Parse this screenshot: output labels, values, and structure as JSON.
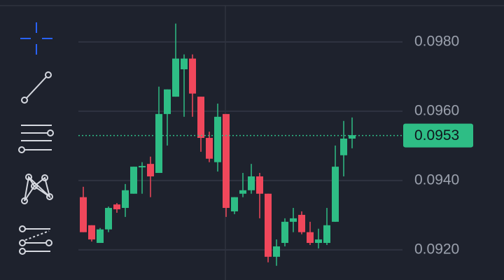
{
  "chart_data": {
    "type": "candlestick",
    "ylim": [
      0.09113,
      0.09921
    ],
    "yticks": [
      {
        "value": 0.098,
        "label": "0.0980"
      },
      {
        "value": 0.096,
        "label": "0.0960"
      },
      {
        "value": 0.094,
        "label": "0.0940"
      },
      {
        "value": 0.092,
        "label": "0.0920"
      }
    ],
    "grid": true,
    "up_color": "#2ebd85",
    "down_color": "#f0475b",
    "current_price": {
      "value": 0.0953,
      "label": "0.0953"
    },
    "open": [
      0.09352,
      0.09271,
      0.0922,
      0.09259,
      0.09331,
      0.09321,
      0.09362,
      0.09438,
      0.09448,
      0.09422,
      0.09592,
      0.09642,
      0.09721,
      0.09752,
      0.09642,
      0.09523,
      0.09453,
      0.09592,
      0.09311,
      0.09362,
      0.09372,
      0.09412,
      0.09362,
      0.0918,
      0.0922,
      0.09281,
      0.09301,
      0.09251,
      0.0922,
      0.0922,
      0.09281,
      0.09473,
      0.09521
    ],
    "high": [
      0.09382,
      0.09271,
      0.09263,
      0.09325,
      0.09335,
      0.0939,
      0.0944,
      0.09453,
      0.09469,
      0.09671,
      0.09663,
      0.09853,
      0.09764,
      0.09764,
      0.09642,
      0.09541,
      0.09622,
      0.09592,
      0.09352,
      0.09422,
      0.09448,
      0.09422,
      0.09362,
      0.0923,
      0.09291,
      0.09321,
      0.09311,
      0.09281,
      0.09261,
      0.09321,
      0.09501,
      0.09572,
      0.09582
    ],
    "low": [
      0.09251,
      0.09224,
      0.0922,
      0.09251,
      0.09307,
      0.09295,
      0.09362,
      0.09362,
      0.09352,
      0.09422,
      0.09501,
      0.09642,
      0.09584,
      0.09584,
      0.09483,
      0.09453,
      0.09426,
      0.09295,
      0.09303,
      0.09352,
      0.09362,
      0.09291,
      0.09164,
      0.09154,
      0.0921,
      0.09251,
      0.09245,
      0.09214,
      0.09204,
      0.09214,
      0.09281,
      0.09412,
      0.09493
    ],
    "close": [
      0.09251,
      0.0923,
      0.09259,
      0.09321,
      0.09317,
      0.09372,
      0.0944,
      0.09442,
      0.09412,
      0.09592,
      0.09663,
      0.09752,
      0.09752,
      0.09651,
      0.09523,
      0.09463,
      0.09584,
      0.09321,
      0.09352,
      0.09372,
      0.09412,
      0.09362,
      0.0918,
      0.0921,
      0.09281,
      0.09291,
      0.09251,
      0.0922,
      0.0923,
      0.09271,
      0.0944,
      0.09521,
      0.09531
    ]
  }
}
